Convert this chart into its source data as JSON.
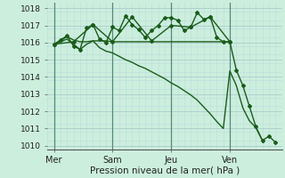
{
  "xlabel": "Pression niveau de la mer( hPa )",
  "bg_color": "#cceedd",
  "grid_major_color": "#aacccc",
  "grid_minor_color": "#bbdddd",
  "line_color": "#1a5c1a",
  "ylim": [
    1009.8,
    1018.3
  ],
  "yticks": [
    1010,
    1011,
    1012,
    1013,
    1014,
    1015,
    1016,
    1017,
    1018
  ],
  "xlim": [
    0,
    36
  ],
  "xtick_labels": [
    "Mer",
    "Sam",
    "Jeu",
    "Ven"
  ],
  "xtick_positions": [
    1,
    10,
    19,
    28
  ],
  "vline_positions": [
    1,
    10,
    19,
    28
  ],
  "line1_x": [
    1,
    2,
    3,
    4,
    5,
    6,
    7,
    8,
    9,
    10,
    11,
    12,
    13,
    14,
    15,
    16,
    17,
    18,
    19,
    20,
    21,
    22,
    23,
    24,
    25,
    26,
    27,
    28
  ],
  "line1_y": [
    1015.9,
    1016.1,
    1016.35,
    1016.15,
    1016.05,
    1016.05,
    1016.1,
    1016.1,
    1016.1,
    1016.05,
    1016.05,
    1016.05,
    1016.05,
    1016.05,
    1016.05,
    1016.05,
    1016.05,
    1016.05,
    1016.05,
    1016.05,
    1016.05,
    1016.05,
    1016.05,
    1016.05,
    1016.05,
    1016.05,
    1016.05,
    1016.05
  ],
  "line2_x": [
    1,
    2,
    3,
    4,
    5,
    6,
    7,
    8,
    9,
    10,
    11,
    12,
    13,
    14,
    15,
    16,
    17,
    18,
    19,
    20,
    21,
    22,
    23,
    24,
    25,
    26,
    27,
    28
  ],
  "line2_y": [
    1015.9,
    1016.15,
    1016.4,
    1015.8,
    1015.6,
    1016.85,
    1017.05,
    1016.2,
    1016.0,
    1016.9,
    1016.7,
    1017.55,
    1017.05,
    1016.75,
    1016.3,
    1016.7,
    1017.0,
    1017.45,
    1017.45,
    1017.3,
    1016.7,
    1016.9,
    1017.75,
    1017.35,
    1017.5,
    1016.3,
    1016.05,
    1016.05
  ],
  "line3_x": [
    1,
    2,
    3,
    4,
    5,
    6,
    7,
    8,
    9,
    10,
    11,
    12,
    13,
    14,
    15,
    16,
    17,
    18,
    19,
    20,
    21,
    22,
    23,
    24,
    25,
    26,
    27,
    28,
    29,
    30,
    31,
    32,
    33
  ],
  "line3_y": [
    1015.9,
    1016.05,
    1016.2,
    1015.9,
    1015.6,
    1015.9,
    1016.1,
    1015.7,
    1015.5,
    1015.4,
    1015.2,
    1015.0,
    1014.85,
    1014.65,
    1014.5,
    1014.3,
    1014.1,
    1013.9,
    1013.65,
    1013.45,
    1013.2,
    1012.95,
    1012.65,
    1012.25,
    1011.85,
    1011.4,
    1011.0,
    1014.35,
    1013.5,
    1012.2,
    1011.45,
    1011.05,
    1010.3
  ],
  "line4_x": [
    1,
    4,
    7,
    10,
    13,
    16,
    19,
    22,
    25,
    28,
    29,
    30,
    31,
    32,
    33,
    34,
    35
  ],
  "line4_y": [
    1015.9,
    1016.05,
    1017.05,
    1016.05,
    1017.5,
    1016.1,
    1017.0,
    1016.9,
    1017.5,
    1016.05,
    1014.4,
    1013.5,
    1012.3,
    1011.1,
    1010.3,
    1010.55,
    1010.2
  ]
}
